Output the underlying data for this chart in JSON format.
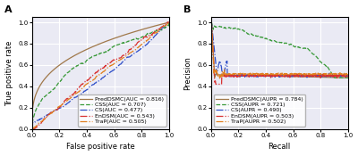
{
  "panel_A_title": "A",
  "panel_B_title": "B",
  "xlabel_A": "False positive rate",
  "ylabel_A": "True positive rate",
  "xlabel_B": "Recall",
  "ylabel_B": "Precision",
  "legend_A": [
    {
      "label": "PredDSMC(AUC = 0.816)",
      "color": "#a0784a",
      "ls": "-",
      "lw": 0.9
    },
    {
      "label": "CSS(AUC = 0.707)",
      "color": "#3a9a3a",
      "ls": "--",
      "lw": 0.9
    },
    {
      "label": "CS(AUC = 0.477)",
      "color": "#3050c8",
      "ls": "-.",
      "lw": 0.9
    },
    {
      "label": "EnDSM(AUC = 0.543)",
      "color": "#d83030",
      "ls": "-.",
      "lw": 0.9
    },
    {
      "label": "TraP(AUC = 0.505)",
      "color": "#e08020",
      "ls": "-.",
      "lw": 0.9
    }
  ],
  "legend_B": [
    {
      "label": "PredDSMC(AUPR = 0.784)",
      "color": "#a0784a",
      "ls": "-",
      "lw": 0.9
    },
    {
      "label": "CSS(AUPR = 0.721)",
      "color": "#3a9a3a",
      "ls": "--",
      "lw": 0.9
    },
    {
      "label": "CS(AUPR = 0.490)",
      "color": "#3050c8",
      "ls": "-.",
      "lw": 0.9
    },
    {
      "label": "EnDSM(AUPR = 0.503)",
      "color": "#d83030",
      "ls": "-.",
      "lw": 0.9
    },
    {
      "label": "TraP(AUPR = 0.502)",
      "color": "#e08020",
      "ls": "-.",
      "lw": 0.9
    }
  ],
  "background_color": "#eaeaf4",
  "tick_fontsize": 5.0,
  "label_fontsize": 6.0,
  "legend_fontsize": 4.5,
  "title_fontsize": 8,
  "grid_color": "#ffffff",
  "grid_lw": 0.8
}
